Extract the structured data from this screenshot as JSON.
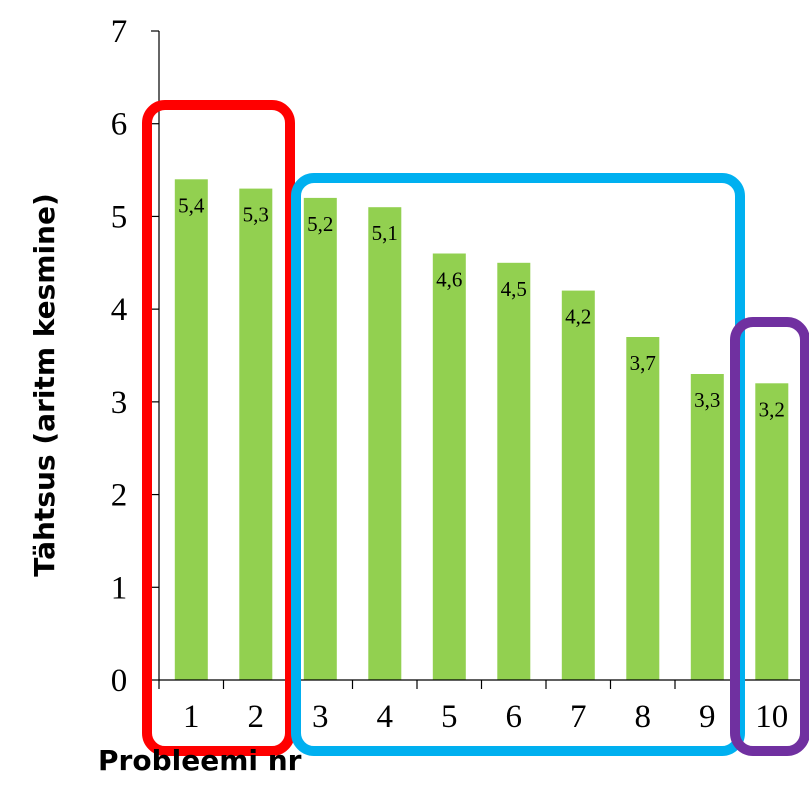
{
  "chart_data": {
    "type": "bar",
    "categories": [
      "1",
      "2",
      "3",
      "4",
      "5",
      "6",
      "7",
      "8",
      "9",
      "10"
    ],
    "values": [
      5.4,
      5.3,
      5.2,
      5.1,
      4.6,
      4.5,
      4.2,
      3.7,
      3.3,
      3.2
    ],
    "data_labels": [
      "5,4",
      "5,3",
      "5,2",
      "5,1",
      "4,6",
      "4,5",
      "4,2",
      "3,7",
      "3,3",
      "3,2"
    ],
    "xlabel": "Probleemi nr",
    "ylabel": "Tähtsus (aritm kesmine)",
    "ylim": [
      0,
      7
    ],
    "yticks": [
      "0",
      "1",
      "2",
      "3",
      "4",
      "5",
      "6",
      "7"
    ],
    "bar_color": "#92d050",
    "grid": false,
    "legend": "none",
    "groups": [
      {
        "categories": [
          "1",
          "2"
        ],
        "color": "#ff0000"
      },
      {
        "categories": [
          "3",
          "4",
          "5",
          "6",
          "7",
          "8",
          "9"
        ],
        "color": "#00b0f0"
      },
      {
        "categories": [
          "10"
        ],
        "color": "#7030a0"
      }
    ]
  }
}
